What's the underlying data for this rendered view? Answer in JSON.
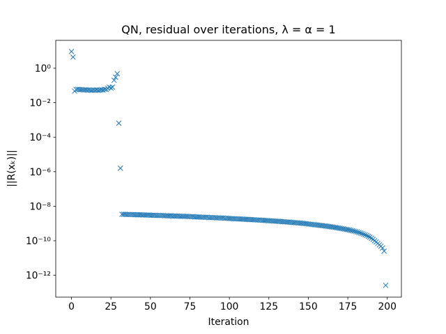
{
  "chart_data": {
    "type": "scatter",
    "title": "QN, residual over iterations, λ = α = 1",
    "xlabel": "Iteration",
    "ylabel": "||R(xₖ)||",
    "yscale": "log",
    "marker": "x",
    "xlim": [
      -9.95,
      208.95
    ],
    "ylim": [
      5.4e-14,
      41
    ],
    "xticks": [
      0,
      25,
      50,
      75,
      100,
      125,
      150,
      175,
      200
    ],
    "yticks": [
      {
        "value": 1,
        "label": "10⁰"
      },
      {
        "value": 0.01,
        "label": "10⁻²"
      },
      {
        "value": 0.0001,
        "label": "10⁻⁴"
      },
      {
        "value": 1e-06,
        "label": "10⁻⁶"
      },
      {
        "value": 1e-08,
        "label": "10⁻⁸"
      },
      {
        "value": 1e-10,
        "label": "10⁻¹⁰"
      },
      {
        "value": 1e-12,
        "label": "10⁻¹²"
      }
    ],
    "series": [
      {
        "color": "#1f77b4",
        "x": [
          0,
          1,
          2,
          3,
          4,
          5,
          6,
          7,
          8,
          9,
          10,
          11,
          12,
          13,
          14,
          15,
          16,
          17,
          18,
          19,
          20,
          21,
          22,
          23,
          24,
          25,
          26,
          27,
          28,
          29,
          30,
          31,
          32,
          33,
          34,
          35,
          36,
          37,
          38,
          39,
          40,
          41,
          42,
          43,
          44,
          45,
          46,
          47,
          48,
          49,
          50,
          51,
          52,
          53,
          54,
          55,
          56,
          57,
          58,
          59,
          60,
          61,
          62,
          63,
          64,
          65,
          66,
          67,
          68,
          69,
          70,
          71,
          72,
          73,
          74,
          75,
          76,
          77,
          78,
          79,
          80,
          81,
          82,
          83,
          84,
          85,
          86,
          87,
          88,
          89,
          90,
          91,
          92,
          93,
          94,
          95,
          96,
          97,
          98,
          99,
          100,
          101,
          102,
          103,
          104,
          105,
          106,
          107,
          108,
          109,
          110,
          111,
          112,
          113,
          114,
          115,
          116,
          117,
          118,
          119,
          120,
          121,
          122,
          123,
          124,
          125,
          126,
          127,
          128,
          129,
          130,
          131,
          132,
          133,
          134,
          135,
          136,
          137,
          138,
          139,
          140,
          141,
          142,
          143,
          144,
          145,
          146,
          147,
          148,
          149,
          150,
          151,
          152,
          153,
          154,
          155,
          156,
          157,
          158,
          159,
          160,
          161,
          162,
          163,
          164,
          165,
          166,
          167,
          168,
          169,
          170,
          171,
          172,
          173,
          174,
          175,
          176,
          177,
          178,
          179,
          180,
          181,
          182,
          183,
          184,
          185,
          186,
          187,
          188,
          189,
          190,
          191,
          192,
          193,
          194,
          195,
          196,
          197,
          198,
          199
        ],
        "values": [
          9.3,
          4.4,
          0.047,
          0.058,
          0.06,
          0.058,
          0.057,
          0.056,
          0.055,
          0.056,
          0.054,
          0.055,
          0.053,
          0.052,
          0.054,
          0.053,
          0.055,
          0.052,
          0.054,
          0.056,
          0.055,
          0.06,
          0.058,
          0.068,
          0.08,
          0.072,
          0.08,
          0.2,
          0.3,
          0.48,
          0.00065,
          1.6e-06,
          3.4e-09,
          3.4e-09,
          3.4e-09,
          3.3e-09,
          3.3e-09,
          3.3e-09,
          3.3e-09,
          3.3e-09,
          3.2e-09,
          3.2e-09,
          3.2e-09,
          3.2e-09,
          3.2e-09,
          3.1e-09,
          3.1e-09,
          3.1e-09,
          3.1e-09,
          3.1e-09,
          3e-09,
          3e-09,
          3e-09,
          3e-09,
          2.9e-09,
          2.9e-09,
          2.9e-09,
          2.9e-09,
          2.9e-09,
          2.8e-09,
          2.8e-09,
          2.8e-09,
          2.8e-09,
          2.8e-09,
          2.7e-09,
          2.7e-09,
          2.7e-09,
          2.7e-09,
          2.7e-09,
          2.6e-09,
          2.6e-09,
          2.6e-09,
          2.6e-09,
          2.6e-09,
          2.5e-09,
          2.5e-09,
          2.5e-09,
          2.5e-09,
          2.4e-09,
          2.4e-09,
          2.4e-09,
          2.4e-09,
          2.3e-09,
          2.3e-09,
          2.3e-09,
          2.3e-09,
          2.3e-09,
          2.2e-09,
          2.2e-09,
          2.2e-09,
          2.2e-09,
          2.2e-09,
          2.1e-09,
          2.1e-09,
          2.1e-09,
          2.1e-09,
          2.1e-09,
          2e-09,
          2e-09,
          2e-09,
          1.95e-09,
          1.93e-09,
          1.91e-09,
          1.89e-09,
          1.87e-09,
          1.85e-09,
          1.83e-09,
          1.81e-09,
          1.79e-09,
          1.77e-09,
          1.75e-09,
          1.73e-09,
          1.71e-09,
          1.69e-09,
          1.67e-09,
          1.65e-09,
          1.63e-09,
          1.61e-09,
          1.59e-09,
          1.57e-09,
          1.55e-09,
          1.53e-09,
          1.51e-09,
          1.49e-09,
          1.47e-09,
          1.45e-09,
          1.43e-09,
          1.41e-09,
          1.39e-09,
          1.37e-09,
          1.35e-09,
          1.33e-09,
          1.31e-09,
          1.29e-09,
          1.27e-09,
          1.25e-09,
          1.23e-09,
          1.21e-09,
          1.19e-09,
          1.17e-09,
          1.15e-09,
          1.13e-09,
          1.11e-09,
          1.09e-09,
          1.07e-09,
          1.05e-09,
          1.03e-09,
          1.01e-09,
          9.9e-10,
          9.7e-10,
          9.3e-10,
          9.1e-10,
          8.9e-10,
          8.7e-10,
          8.5e-10,
          8.3e-10,
          8.1e-10,
          7.9e-10,
          7.7e-10,
          7.5e-10,
          7.3e-10,
          7.1e-10,
          6.9e-10,
          6.7e-10,
          6.5e-10,
          6.3e-10,
          6.1e-10,
          5.9e-10,
          5.7e-10,
          5.5e-10,
          5.3e-10,
          5.1e-10,
          4.9e-10,
          4.7e-10,
          4.5e-10,
          4.4e-10,
          4.2e-10,
          4e-10,
          3.8e-10,
          3.6e-10,
          3.4e-10,
          3.2e-10,
          3e-10,
          2.8e-10,
          2.6e-10,
          2.4e-10,
          2.2e-10,
          2e-10,
          1.8e-10,
          1.6e-10,
          1.4e-10,
          1.2e-10,
          1e-10,
          8.5e-11,
          7e-11,
          5.8e-11,
          4.8e-11,
          3.8e-11,
          2.5e-11,
          2.6e-13
        ]
      }
    ]
  }
}
